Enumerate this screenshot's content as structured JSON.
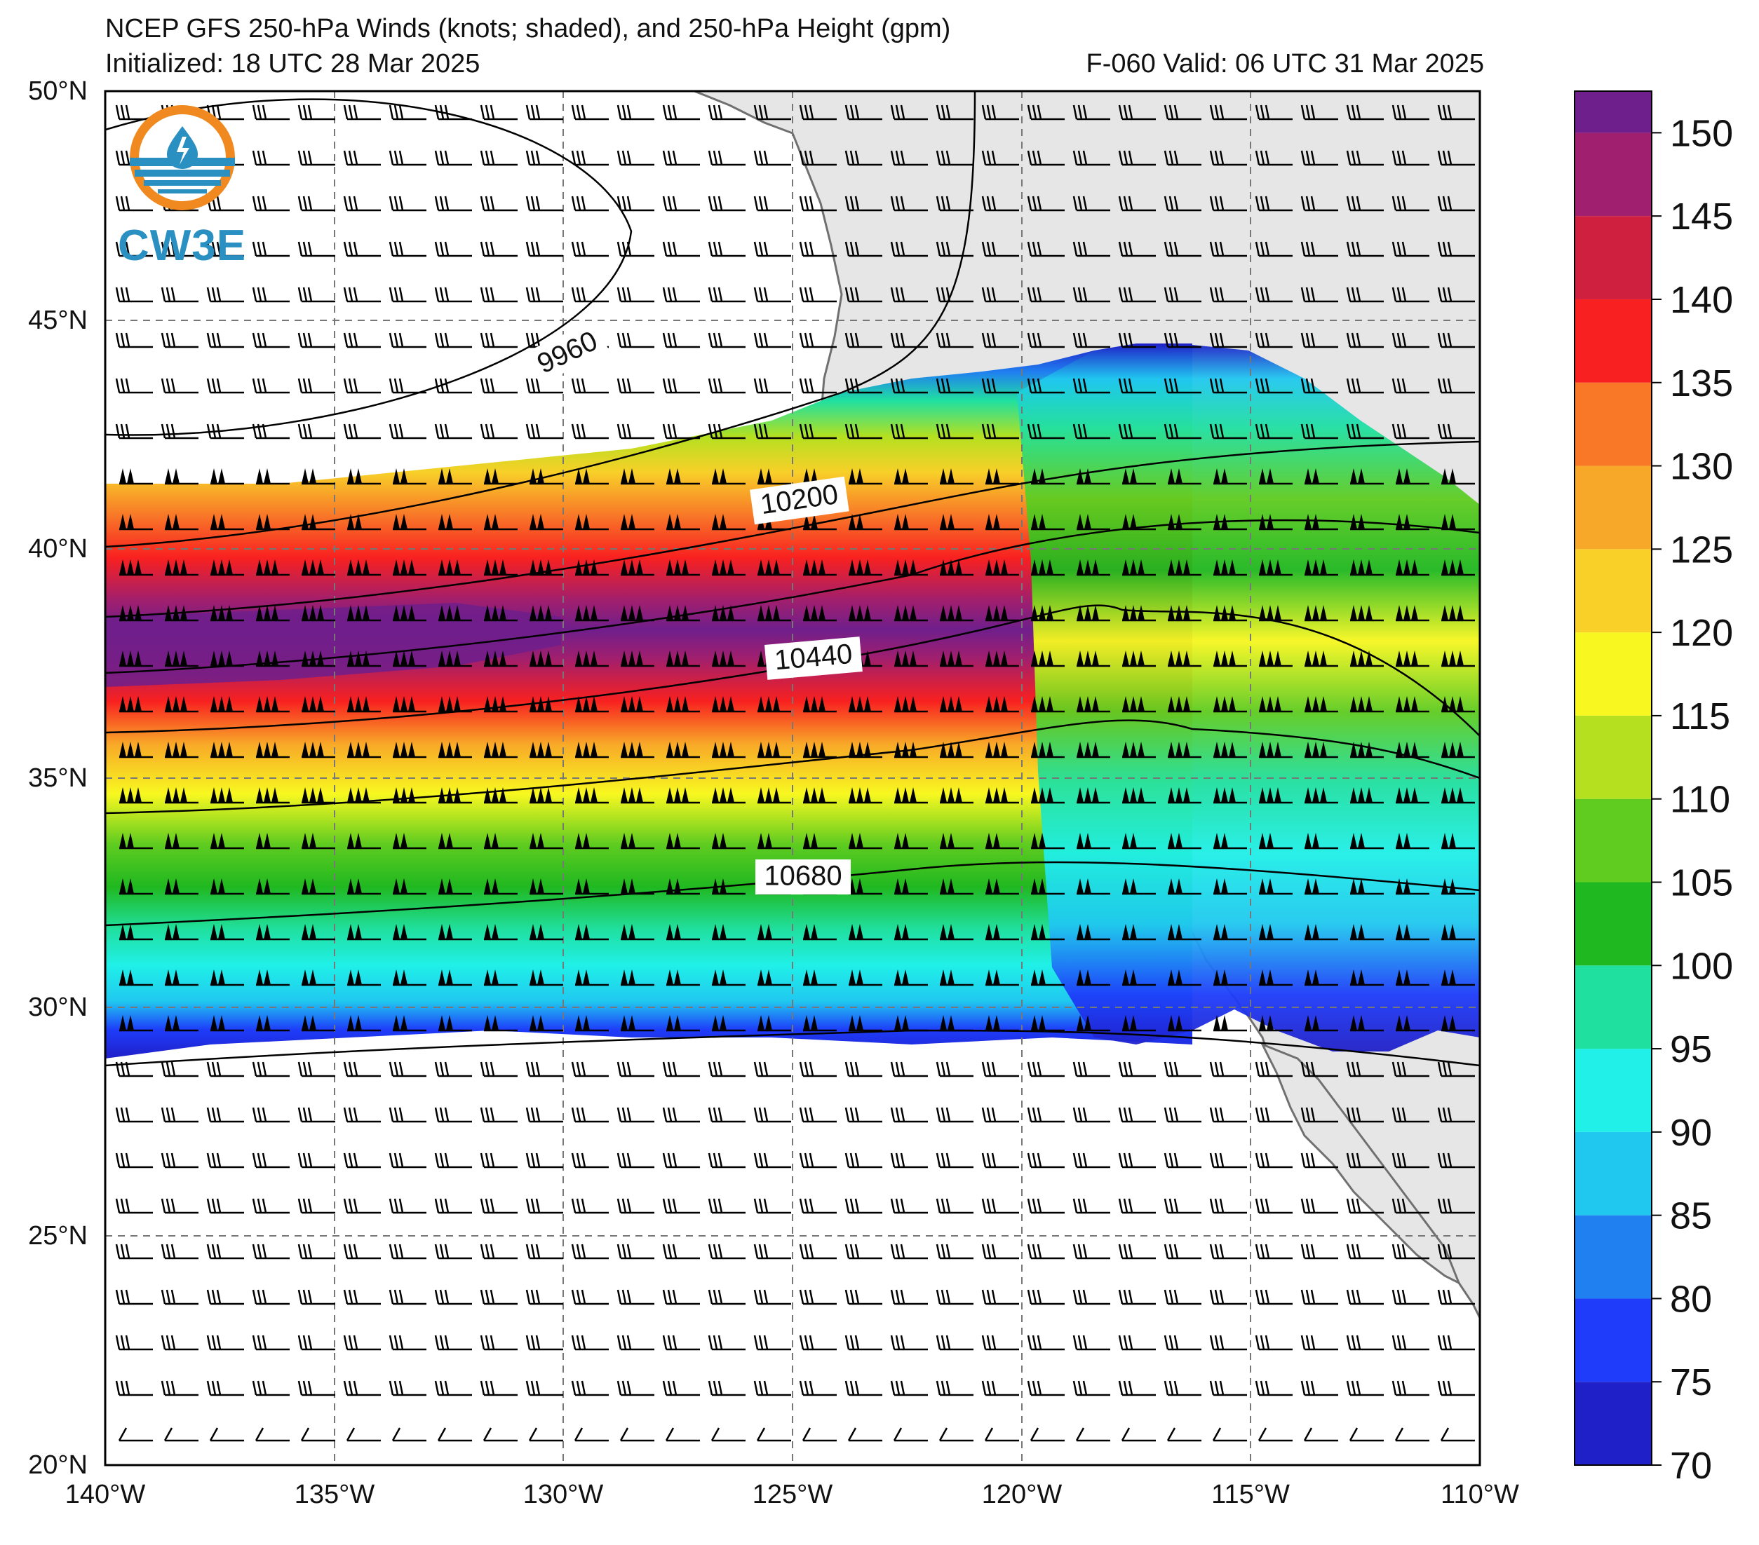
{
  "title": {
    "line1": "NCEP GFS 250-hPa Winds (knots; shaded), and 250-hPa Height (gpm)",
    "line2": "Initialized: 18 UTC 28 Mar 2025",
    "right": "F-060  Valid: 06 UTC 31 Mar 2025"
  },
  "logo": {
    "text": "CW3E",
    "icon": "cw3e-water-drop-logo-icon"
  },
  "map": {
    "extent": {
      "lon": [
        -140,
        -110
      ],
      "lat": [
        20,
        50
      ]
    },
    "lat_labels": [
      "20°N",
      "25°N",
      "30°N",
      "35°N",
      "40°N",
      "45°N",
      "50°N"
    ],
    "lon_labels": [
      "140°W",
      "135°W",
      "130°W",
      "125°W",
      "120°W",
      "115°W",
      "110°W"
    ],
    "land_color": "#e6e6e6",
    "coast_color": "#707070",
    "grid": "dashed"
  },
  "contours": {
    "labels": [
      "9960",
      "10200",
      "10440",
      "10680"
    ]
  },
  "colorbar": {
    "labels": [
      "70",
      "75",
      "80",
      "85",
      "90",
      "95",
      "100",
      "105",
      "110",
      "115",
      "120",
      "125",
      "130",
      "135",
      "140",
      "145",
      "150"
    ],
    "colors": [
      "#2020c8",
      "#1e3cfa",
      "#2080f0",
      "#20c8f0",
      "#20f0e8",
      "#20e0a0",
      "#20b820",
      "#60cc20",
      "#b4e020",
      "#f8f820",
      "#f8d028",
      "#f8a828",
      "#f87828",
      "#f82020",
      "#d02040",
      "#a01f6e",
      "#6f1f8c"
    ]
  },
  "colors": {
    "title_text": "#111111",
    "contour": "#000000",
    "barb": "#000000",
    "logo_blue": "#2a8fc1",
    "logo_orange": "#f08a20"
  }
}
